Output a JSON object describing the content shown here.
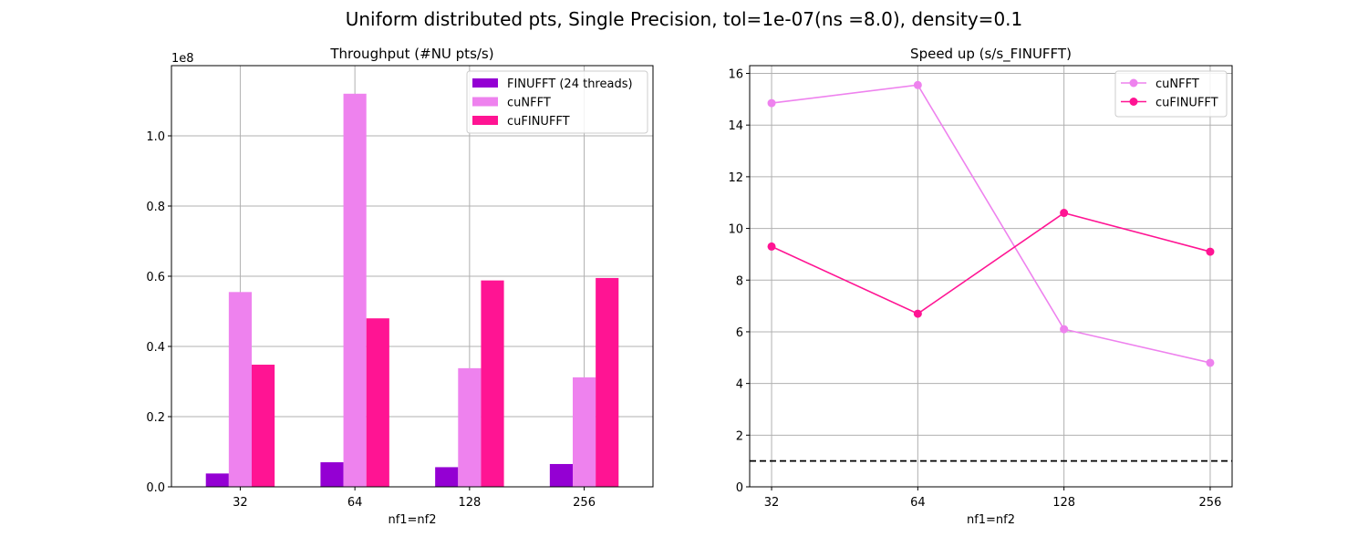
{
  "figure": {
    "suptitle": "Uniform distributed pts, Single Precision, tol=1e-07(ns =8.0), density=0.1"
  },
  "colors": {
    "finufft": "#9400d3",
    "cunfft": "#ee82ee",
    "cufinufft": "#ff1493",
    "grid": "#b0b0b0",
    "reference_line": "#000000"
  },
  "chart_data": [
    {
      "type": "bar",
      "title": "Throughput (#NU pts/s)",
      "xlabel": "nf1=nf2",
      "ylabel": "",
      "scale_label": "1e8",
      "categories": [
        "32",
        "64",
        "128",
        "256"
      ],
      "series": [
        {
          "name": "FINUFFT (24 threads)",
          "color": "#9400d3",
          "values": [
            3800000,
            7000000,
            5600000,
            6500000
          ]
        },
        {
          "name": "cuNFFT",
          "color": "#ee82ee",
          "values": [
            55500000,
            112000000,
            33800000,
            31200000
          ]
        },
        {
          "name": "cuFINUFFT",
          "color": "#ff1493",
          "values": [
            34800000,
            48000000,
            58800000,
            59500000
          ]
        }
      ],
      "ylim": [
        0,
        120000000
      ],
      "yticks": [
        0,
        20000000,
        40000000,
        60000000,
        80000000,
        100000000
      ],
      "ytick_labels": [
        "0.0",
        "0.2",
        "0.4",
        "0.6",
        "0.8",
        "1.0"
      ],
      "grid": true,
      "legend_position": "top-right"
    },
    {
      "type": "line",
      "title": "Speed up (s/s_FINUFFT)",
      "xlabel": "nf1=nf2",
      "ylabel": "",
      "categories": [
        "32",
        "64",
        "128",
        "256"
      ],
      "series": [
        {
          "name": "cuNFFT",
          "color": "#ee82ee",
          "values": [
            14.85,
            15.55,
            6.1,
            4.8
          ]
        },
        {
          "name": "cuFINUFFT",
          "color": "#ff1493",
          "values": [
            9.3,
            6.7,
            10.6,
            9.1
          ]
        }
      ],
      "reference_line": {
        "y": 1.0,
        "style": "dashed",
        "color": "#000000"
      },
      "ylim": [
        0,
        16.3
      ],
      "yticks": [
        0,
        2,
        4,
        6,
        8,
        10,
        12,
        14,
        16
      ],
      "ytick_labels": [
        "0",
        "2",
        "4",
        "6",
        "8",
        "10",
        "12",
        "14",
        "16"
      ],
      "grid": true,
      "legend_position": "top-right"
    }
  ]
}
